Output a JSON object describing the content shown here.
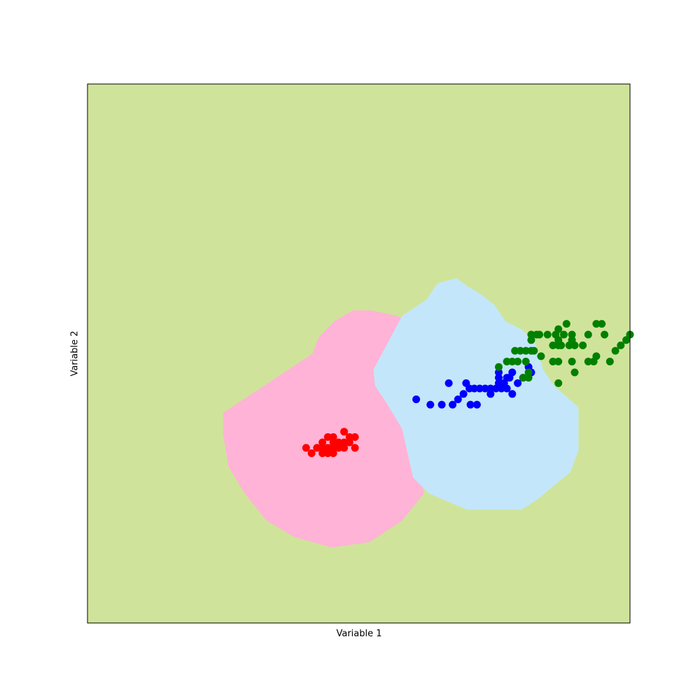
{
  "chart_data": {
    "type": "scatter",
    "title": "",
    "xlabel": "Variable 1",
    "ylabel": "Variable 2",
    "xlim": [
      0,
      100
    ],
    "ylim": [
      0,
      100
    ],
    "ticks_visible": false,
    "grid": false,
    "legend": "none",
    "background_region_color": "#cfe49a",
    "regions": [
      {
        "color": "#ffb3d6",
        "polygon": [
          [
            41.5,
            50
          ],
          [
            42.6,
            53
          ],
          [
            45.5,
            56
          ],
          [
            48.9,
            58
          ],
          [
            52.3,
            58
          ],
          [
            57.1,
            57
          ],
          [
            60,
            55
          ],
          [
            53.2,
            48
          ],
          [
            57.1,
            43
          ],
          [
            58.1,
            39
          ],
          [
            60,
            36
          ],
          [
            62,
            24
          ],
          [
            58,
            19
          ],
          [
            52,
            15
          ],
          [
            45,
            14
          ],
          [
            38,
            16
          ],
          [
            33,
            19
          ],
          [
            29,
            24
          ],
          [
            26,
            29
          ],
          [
            25,
            35
          ],
          [
            25,
            39
          ]
        ]
      },
      {
        "color": "#c4e6fa",
        "polygon": [
          [
            58,
            57
          ],
          [
            62.5,
            60
          ],
          [
            64.5,
            63
          ],
          [
            68,
            64
          ],
          [
            70,
            62.5
          ],
          [
            72.5,
            61
          ],
          [
            75,
            59
          ],
          [
            77,
            56
          ],
          [
            80,
            54.5
          ],
          [
            82.5,
            52
          ],
          [
            84,
            47
          ],
          [
            86,
            44
          ],
          [
            90.5,
            40
          ],
          [
            90.5,
            32
          ],
          [
            89,
            28
          ],
          [
            83,
            23
          ],
          [
            80,
            21
          ],
          [
            70,
            21
          ],
          [
            63,
            24
          ],
          [
            60,
            27
          ],
          [
            58,
            36
          ],
          [
            55,
            41
          ],
          [
            53,
            44
          ],
          [
            52.7,
            47
          ]
        ]
      }
    ],
    "series": [
      {
        "color": "#ff0000",
        "points": [
          [
            40.3,
            32.5
          ],
          [
            41.3,
            31.5
          ],
          [
            42.3,
            32.5
          ],
          [
            43.3,
            33.5
          ],
          [
            43.3,
            32.5
          ],
          [
            43.3,
            31.5
          ],
          [
            44.3,
            34.5
          ],
          [
            44.3,
            32.5
          ],
          [
            44.3,
            31.5
          ],
          [
            45.3,
            34.5
          ],
          [
            45.3,
            33.5
          ],
          [
            45.3,
            32.5
          ],
          [
            45.3,
            31.5
          ],
          [
            46.3,
            33.5
          ],
          [
            46.3,
            32.5
          ],
          [
            47.3,
            35.5
          ],
          [
            47.3,
            33.5
          ],
          [
            47.3,
            32.5
          ],
          [
            48.3,
            34.5
          ],
          [
            48.3,
            33.5
          ],
          [
            49.3,
            32.5
          ],
          [
            49.3,
            34.5
          ]
        ]
      },
      {
        "color": "#0000ff",
        "points": [
          [
            60.6,
            41.5
          ],
          [
            63.2,
            40.5
          ],
          [
            65.3,
            40.5
          ],
          [
            66.6,
            44.5
          ],
          [
            67.3,
            40.5
          ],
          [
            68.3,
            41.5
          ],
          [
            69.3,
            42.5
          ],
          [
            69.8,
            44.5
          ],
          [
            70.4,
            43.5
          ],
          [
            70.6,
            40.5
          ],
          [
            71.3,
            43.5
          ],
          [
            71.8,
            40.5
          ],
          [
            72.3,
            43.5
          ],
          [
            73.3,
            43.5
          ],
          [
            74.3,
            42.5
          ],
          [
            74.3,
            43.5
          ],
          [
            75.3,
            43.5
          ],
          [
            75.8,
            44.5
          ],
          [
            75.8,
            45.5
          ],
          [
            75.8,
            46.5
          ],
          [
            76.3,
            43.5
          ],
          [
            76.8,
            44.5
          ],
          [
            77.3,
            45.5
          ],
          [
            77.3,
            43.5
          ],
          [
            77.8,
            45.5
          ],
          [
            78.3,
            42.5
          ],
          [
            78.3,
            46.5
          ],
          [
            79.3,
            44.5
          ],
          [
            80.3,
            45.5
          ],
          [
            81.3,
            47.5
          ],
          [
            81.8,
            46.5
          ]
        ]
      },
      {
        "color": "#008000",
        "points": [
          [
            75.8,
            47.5
          ],
          [
            77.3,
            48.5
          ],
          [
            78.3,
            48.5
          ],
          [
            78.8,
            50.5
          ],
          [
            79.3,
            48.5
          ],
          [
            79.8,
            50.5
          ],
          [
            80.3,
            45.5
          ],
          [
            80.8,
            48.5
          ],
          [
            80.8,
            50.5
          ],
          [
            81.3,
            45.5
          ],
          [
            81.3,
            46.5
          ],
          [
            81.8,
            50.5
          ],
          [
            81.8,
            52.5
          ],
          [
            81.8,
            53.5
          ],
          [
            82.3,
            50.5
          ],
          [
            82.8,
            53.5
          ],
          [
            83.3,
            53.5
          ],
          [
            83.6,
            49.5
          ],
          [
            84.8,
            53.5
          ],
          [
            85.8,
            48.5
          ],
          [
            85.8,
            51.5
          ],
          [
            86.3,
            53.5
          ],
          [
            86.8,
            44.5
          ],
          [
            86.8,
            51.5
          ],
          [
            86.8,
            48.5
          ],
          [
            86.8,
            54.5
          ],
          [
            86.8,
            52.5
          ],
          [
            87.3,
            51.5
          ],
          [
            87.8,
            53.5
          ],
          [
            88.3,
            55.5
          ],
          [
            88.8,
            51.5
          ],
          [
            89.3,
            48.5
          ],
          [
            89.3,
            52.5
          ],
          [
            89.3,
            53.5
          ],
          [
            89.8,
            51.5
          ],
          [
            89.8,
            46.5
          ],
          [
            91.3,
            51.5
          ],
          [
            92.3,
            53.5
          ],
          [
            92.3,
            48.5
          ],
          [
            93.3,
            48.5
          ],
          [
            93.8,
            49.5
          ],
          [
            93.8,
            55.5
          ],
          [
            94.8,
            55.5
          ],
          [
            95.3,
            53.5
          ],
          [
            96.3,
            48.5
          ],
          [
            97.3,
            50.5
          ],
          [
            98.3,
            51.5
          ],
          [
            99.3,
            52.5
          ],
          [
            100,
            53.5
          ]
        ]
      }
    ]
  }
}
